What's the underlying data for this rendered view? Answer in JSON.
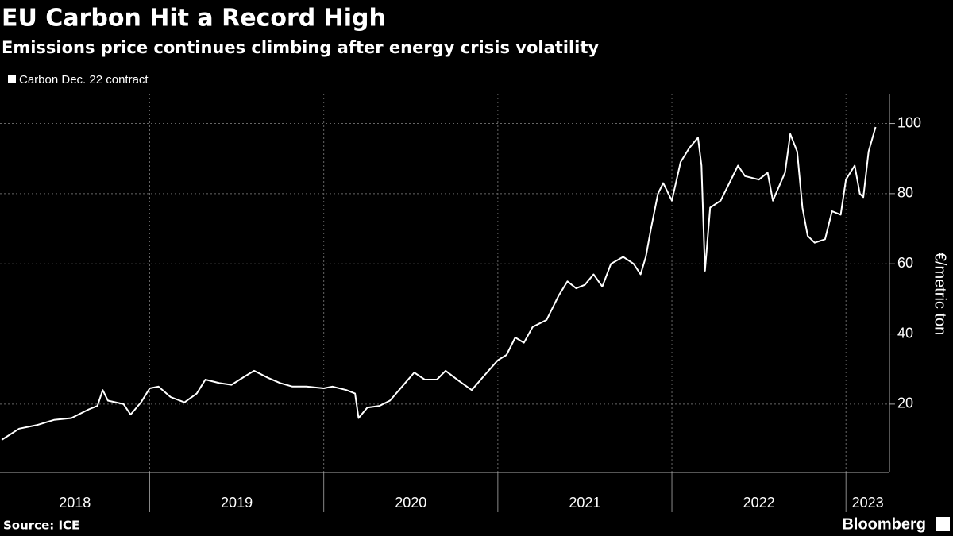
{
  "chart_data": {
    "type": "line",
    "title": "EU Carbon Hit a Record High",
    "subtitle": "Emissions price continues climbing after energy crisis volatility",
    "y_label": "€/metric ton",
    "source": "Source: ICE",
    "brand": "Bloomberg",
    "legend": "top-left",
    "grid": true,
    "xlim": [
      2018.14,
      2023.25
    ],
    "xticks": [
      2018,
      2019,
      2020,
      2021,
      2022,
      2023
    ],
    "ylim": [
      0.5,
      108.5
    ],
    "yticks": [
      20,
      40,
      60,
      80,
      100
    ],
    "x": [
      2018.15,
      2018.25,
      2018.35,
      2018.45,
      2018.55,
      2018.65,
      2018.7,
      2018.73,
      2018.76,
      2018.85,
      2018.89,
      2018.95,
      2019.0,
      2019.05,
      2019.12,
      2019.2,
      2019.27,
      2019.32,
      2019.4,
      2019.47,
      2019.55,
      2019.6,
      2019.68,
      2019.75,
      2019.82,
      2019.9,
      2020.0,
      2020.05,
      2020.13,
      2020.18,
      2020.2,
      2020.25,
      2020.32,
      2020.38,
      2020.45,
      2020.52,
      2020.58,
      2020.65,
      2020.7,
      2020.78,
      2020.85,
      2020.92,
      2021.0,
      2021.05,
      2021.1,
      2021.15,
      2021.2,
      2021.28,
      2021.35,
      2021.4,
      2021.45,
      2021.5,
      2021.55,
      2021.6,
      2021.65,
      2021.72,
      2021.78,
      2021.82,
      2021.85,
      2021.88,
      2021.92,
      2021.95,
      2022.0,
      2022.05,
      2022.1,
      2022.15,
      2022.17,
      2022.19,
      2022.22,
      2022.28,
      2022.32,
      2022.38,
      2022.42,
      2022.5,
      2022.55,
      2022.58,
      2022.65,
      2022.68,
      2022.72,
      2022.75,
      2022.78,
      2022.82,
      2022.88,
      2022.92,
      2022.97,
      2023.0,
      2023.05,
      2023.08,
      2023.1,
      2023.13,
      2023.17
    ],
    "series": [
      {
        "name": "Carbon Dec. 22 contract",
        "color": "#ffffff",
        "values": [
          9.8,
          13,
          14,
          15.5,
          16,
          18.5,
          19.5,
          24,
          21,
          20,
          17,
          20.5,
          24.5,
          25,
          22,
          20.5,
          23,
          27,
          26,
          25.5,
          28,
          29.5,
          27.5,
          26,
          25,
          25,
          24.5,
          25,
          24,
          23,
          16,
          19,
          19.5,
          21,
          25,
          29,
          27,
          27,
          29.5,
          26.5,
          24,
          28,
          32.5,
          34,
          39,
          37.5,
          42,
          44,
          51,
          55,
          53,
          54,
          57,
          53.5,
          60,
          62,
          60,
          57,
          62,
          70,
          80,
          83,
          78,
          89,
          93,
          96,
          88,
          58,
          76,
          78,
          82,
          88,
          85,
          84,
          86,
          78,
          86,
          97,
          92,
          76,
          68,
          66,
          67,
          75,
          74,
          84,
          88,
          80,
          79,
          92,
          99
        ]
      }
    ]
  }
}
